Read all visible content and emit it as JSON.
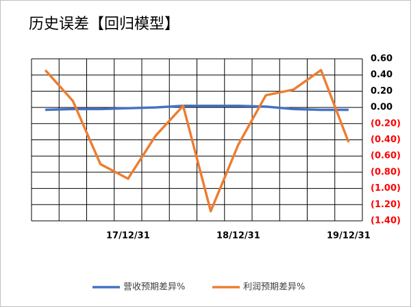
{
  "chart_data": {
    "type": "line",
    "title": "历史误差【回归模型】",
    "categories": [
      null,
      null,
      null,
      "17/12/31",
      null,
      null,
      null,
      "18/12/31",
      null,
      null,
      null,
      "19/12/31"
    ],
    "series": [
      {
        "name": "营收预期差异%",
        "color": "#4472c4",
        "values": [
          -0.03,
          -0.02,
          -0.02,
          -0.01,
          0.0,
          0.02,
          0.02,
          0.02,
          0.01,
          -0.02,
          -0.03,
          -0.03
        ]
      },
      {
        "name": "利润预期差异%",
        "color": "#ed7d31",
        "values": [
          0.46,
          0.08,
          -0.7,
          -0.88,
          -0.35,
          0.02,
          -1.28,
          -0.46,
          0.15,
          0.22,
          0.46,
          -0.43
        ]
      }
    ],
    "ylim": [
      -1.4,
      0.6
    ],
    "yticks": [
      {
        "value": 0.6,
        "label": "0.60"
      },
      {
        "value": 0.4,
        "label": "0.40"
      },
      {
        "value": 0.2,
        "label": "0.20"
      },
      {
        "value": 0,
        "label": "0.00"
      },
      {
        "value": -0.2,
        "label": "(0.20)"
      },
      {
        "value": -0.4,
        "label": "(0.40)"
      },
      {
        "value": -0.6,
        "label": "(0.60)"
      },
      {
        "value": -0.8,
        "label": "(0.80)"
      },
      {
        "value": -1.0,
        "label": "(1.00)"
      },
      {
        "value": -1.2,
        "label": "(1.20)"
      },
      {
        "value": -1.4,
        "label": "(1.40)"
      }
    ],
    "y_axis_side": "right",
    "negative_tick_color": "#ff0000",
    "grid": true,
    "legend": "bottom"
  }
}
